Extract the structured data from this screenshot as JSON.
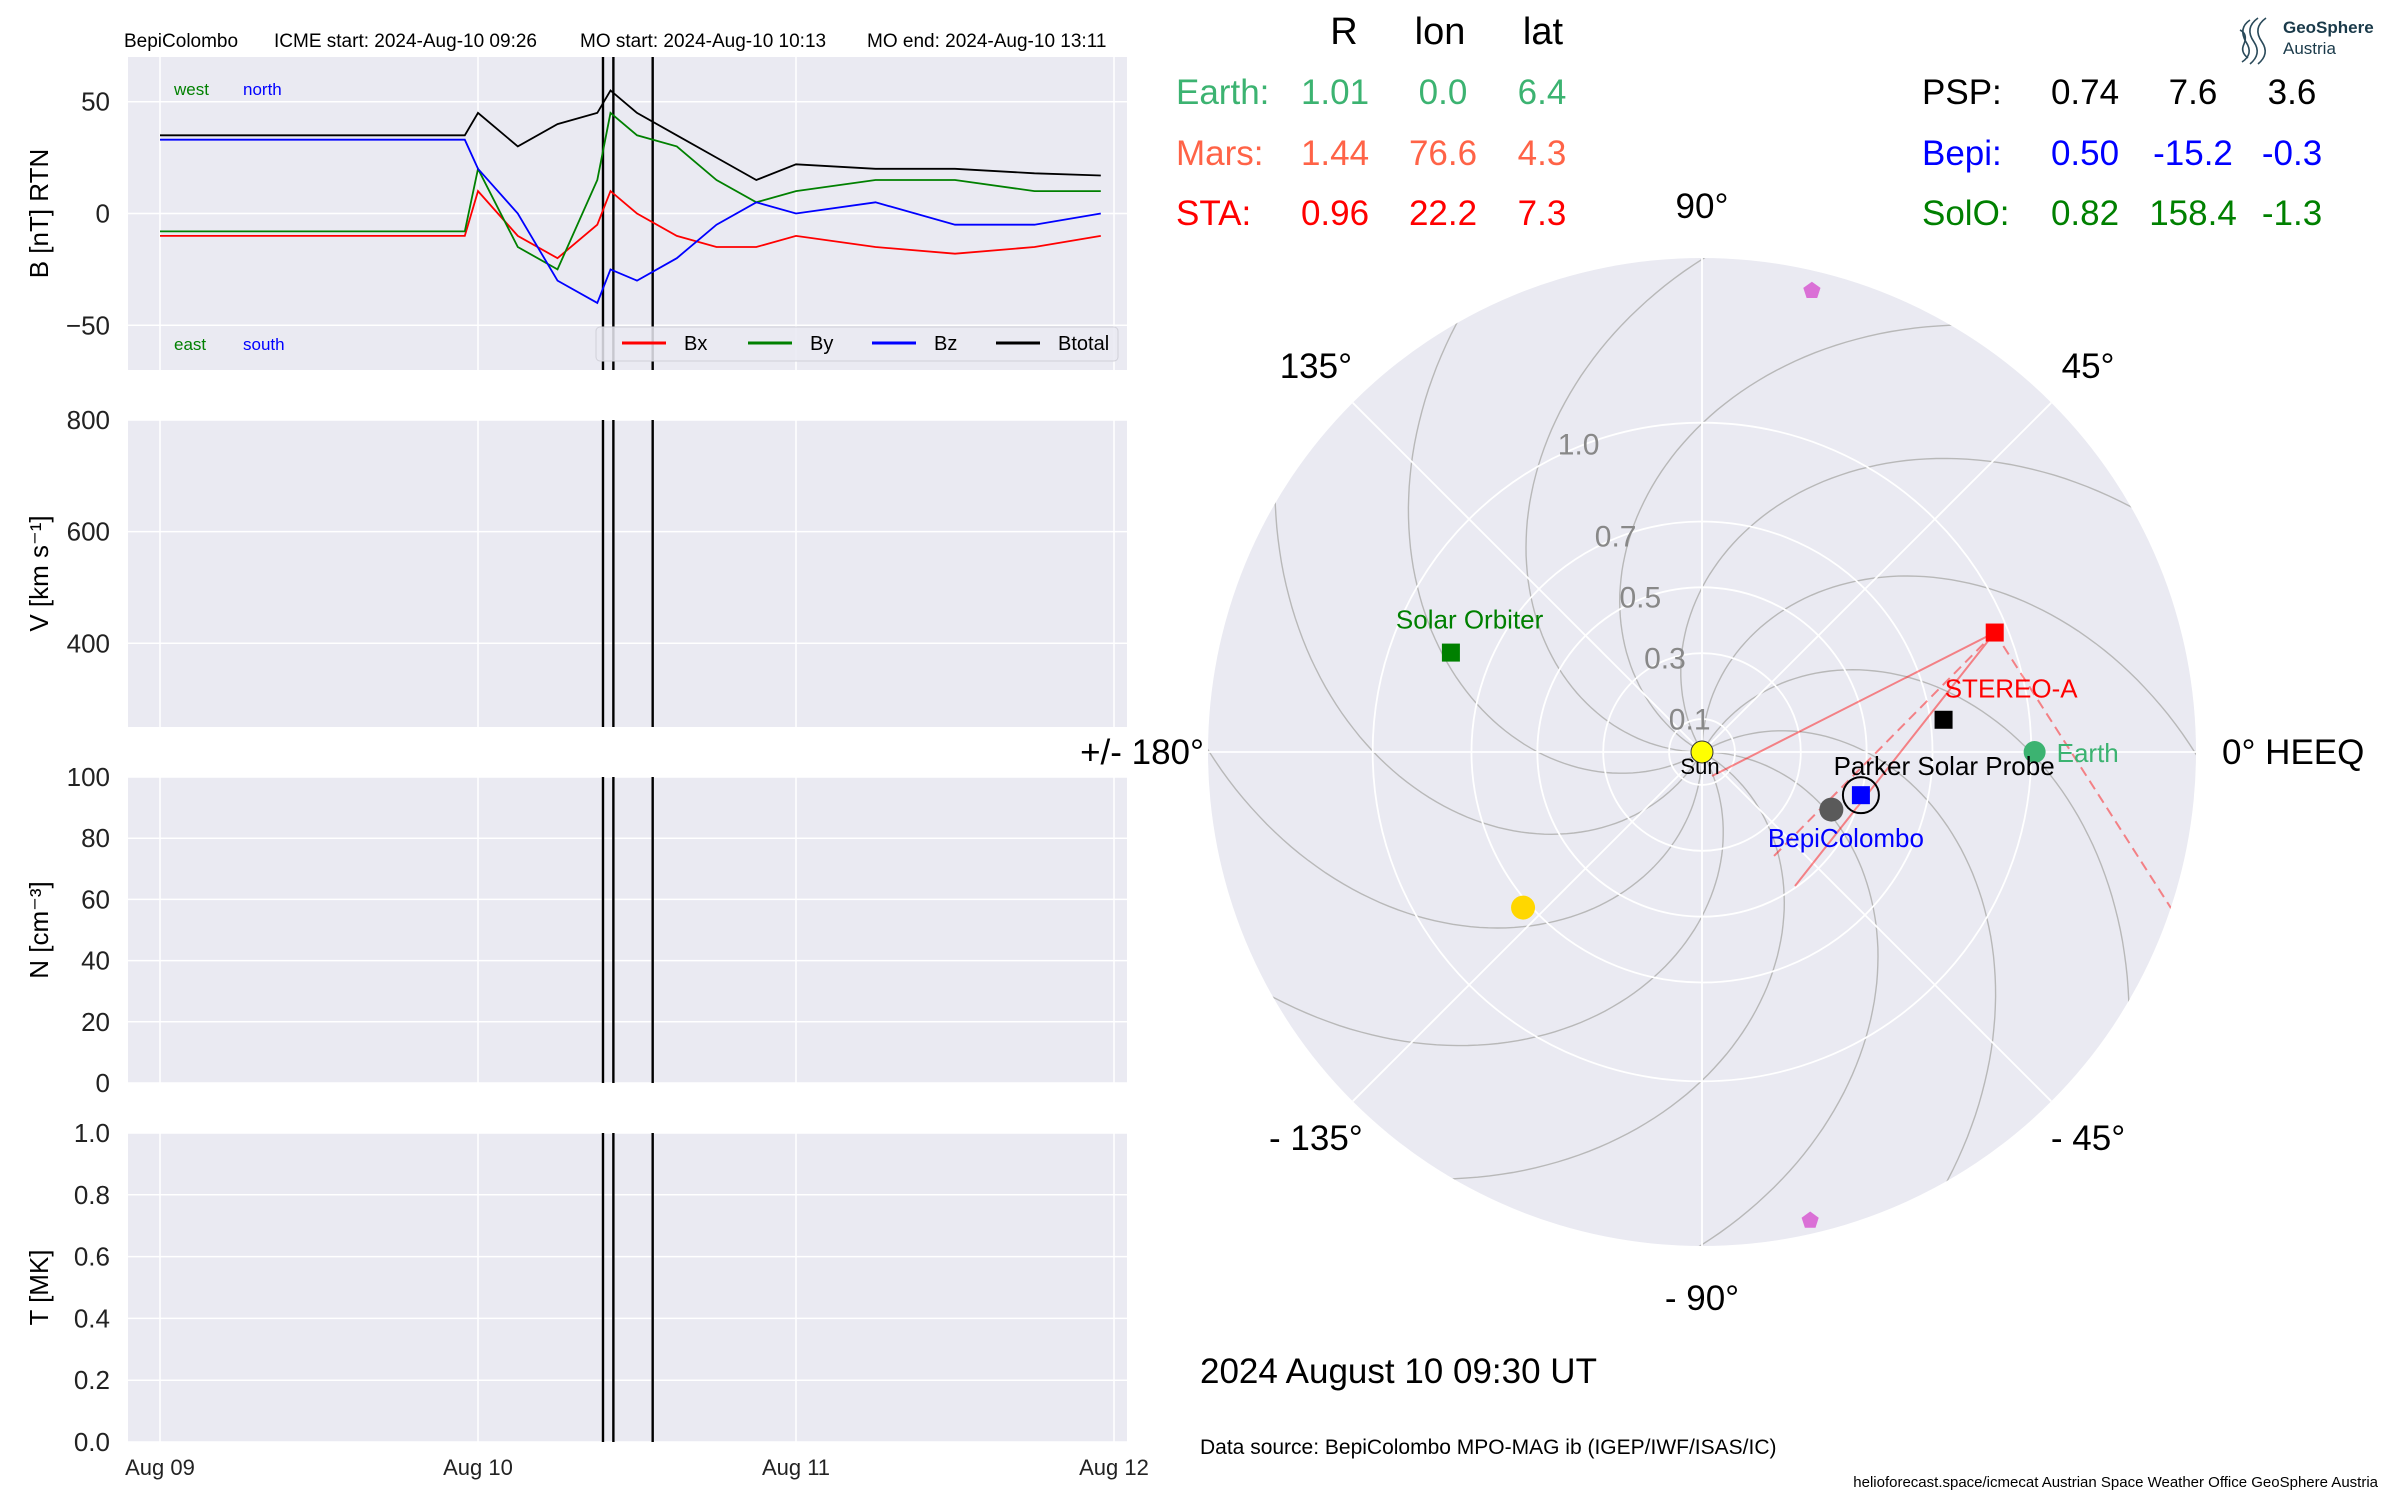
{
  "header": {
    "spacecraft": "BepiColombo",
    "icme_start": "ICME start: 2024-Aug-10 09:26",
    "mo_start": "MO start: 2024-Aug-10 10:13",
    "mo_end": "MO end: 2024-Aug-10 13:11"
  },
  "logo": {
    "line1": "GeoSphere",
    "line2": "Austria"
  },
  "colors": {
    "bx": "#ff0000",
    "by": "#008000",
    "bz": "#0000ff",
    "btotal": "#000000",
    "panel_bg": "#eaeaf2",
    "earth": "#3cb371",
    "mars": "#ff6347",
    "sta": "#ff0000",
    "psp": "#000000",
    "bepi": "#0000ff",
    "solo": "#008000"
  },
  "positions_table": {
    "headers": [
      "R",
      "lon",
      "lat"
    ],
    "left": [
      {
        "name": "Earth:",
        "values": [
          "1.01",
          "0.0",
          "6.4"
        ],
        "color": "#3cb371"
      },
      {
        "name": "Mars:",
        "values": [
          "1.44",
          "76.6",
          "4.3"
        ],
        "color": "#ff6347"
      },
      {
        "name": "STA:",
        "values": [
          "0.96",
          "22.2",
          "7.3"
        ],
        "color": "#ff0000"
      }
    ],
    "right": [
      {
        "name": "PSP:",
        "values": [
          "0.74",
          "7.6",
          "3.6"
        ],
        "color": "#000000"
      },
      {
        "name": "Bepi:",
        "values": [
          "0.50",
          "-15.2",
          "-0.3"
        ],
        "color": "#0000ff"
      },
      {
        "name": "SolO:",
        "values": [
          "0.82",
          "158.4",
          "-1.3"
        ],
        "color": "#008000"
      }
    ]
  },
  "chart_data": [
    {
      "type": "line",
      "title": "",
      "ylabel": "B [nT] RTN",
      "xlabel": "",
      "x_ticks": [
        "Aug 09",
        "Aug 10",
        "Aug 11",
        "Aug 12"
      ],
      "x_range": [
        "2024-08-09T00:00",
        "2024-08-12T00:00"
      ],
      "ylim": [
        -70,
        70
      ],
      "y_ticks": [
        "50",
        "0",
        "−50"
      ],
      "grid": true,
      "legend_position": "bottom-right",
      "orientation_labels": {
        "top_left": [
          "west",
          "north"
        ],
        "bottom_left": [
          "east",
          "south"
        ]
      },
      "event_markers": [
        "2024-08-10T09:26",
        "2024-08-10T10:13",
        "2024-08-10T13:11"
      ],
      "series": [
        {
          "name": "Bx",
          "color": "#ff0000",
          "x": [
            "2024-08-09T00:00",
            "2024-08-09T23:00",
            "2024-08-10T00:00",
            "2024-08-10T03:00",
            "2024-08-10T06:00",
            "2024-08-10T09:00",
            "2024-08-10T10:00",
            "2024-08-10T12:00",
            "2024-08-10T15:00",
            "2024-08-10T18:00",
            "2024-08-10T21:00",
            "2024-08-11T00:00",
            "2024-08-11T06:00",
            "2024-08-11T12:00",
            "2024-08-11T18:00",
            "2024-08-11T23:00"
          ],
          "values": [
            -10,
            -10,
            10,
            -10,
            -20,
            -5,
            10,
            0,
            -10,
            -15,
            -15,
            -10,
            -15,
            -18,
            -15,
            -10
          ]
        },
        {
          "name": "By",
          "color": "#008000",
          "x": [
            "2024-08-09T00:00",
            "2024-08-09T23:00",
            "2024-08-10T00:00",
            "2024-08-10T03:00",
            "2024-08-10T06:00",
            "2024-08-10T09:00",
            "2024-08-10T10:00",
            "2024-08-10T12:00",
            "2024-08-10T15:00",
            "2024-08-10T18:00",
            "2024-08-10T21:00",
            "2024-08-11T00:00",
            "2024-08-11T06:00",
            "2024-08-11T12:00",
            "2024-08-11T18:00",
            "2024-08-11T23:00"
          ],
          "values": [
            -8,
            -8,
            20,
            -15,
            -25,
            15,
            45,
            35,
            30,
            15,
            5,
            10,
            15,
            15,
            10,
            10
          ]
        },
        {
          "name": "Bz",
          "color": "#0000ff",
          "x": [
            "2024-08-09T00:00",
            "2024-08-09T23:00",
            "2024-08-10T00:00",
            "2024-08-10T03:00",
            "2024-08-10T06:00",
            "2024-08-10T09:00",
            "2024-08-10T10:00",
            "2024-08-10T12:00",
            "2024-08-10T15:00",
            "2024-08-10T18:00",
            "2024-08-10T21:00",
            "2024-08-11T00:00",
            "2024-08-11T06:00",
            "2024-08-11T12:00",
            "2024-08-11T18:00",
            "2024-08-11T23:00"
          ],
          "values": [
            33,
            33,
            20,
            0,
            -30,
            -40,
            -25,
            -30,
            -20,
            -5,
            5,
            0,
            5,
            -5,
            -5,
            0
          ]
        },
        {
          "name": "Btotal",
          "color": "#000000",
          "x": [
            "2024-08-09T00:00",
            "2024-08-09T23:00",
            "2024-08-10T00:00",
            "2024-08-10T03:00",
            "2024-08-10T06:00",
            "2024-08-10T09:00",
            "2024-08-10T10:00",
            "2024-08-10T12:00",
            "2024-08-10T15:00",
            "2024-08-10T18:00",
            "2024-08-10T21:00",
            "2024-08-11T00:00",
            "2024-08-11T06:00",
            "2024-08-11T12:00",
            "2024-08-11T18:00",
            "2024-08-11T23:00"
          ],
          "values": [
            35,
            35,
            45,
            30,
            40,
            45,
            55,
            45,
            35,
            25,
            15,
            22,
            20,
            20,
            18,
            17
          ]
        }
      ]
    },
    {
      "type": "line",
      "title": "",
      "ylabel": "V [km s⁻¹]",
      "x_ticks": [
        "Aug 09",
        "Aug 10",
        "Aug 11",
        "Aug 12"
      ],
      "ylim": [
        250,
        800
      ],
      "y_ticks": [
        "800",
        "600",
        "400"
      ],
      "grid": true,
      "event_markers": [
        "2024-08-10T09:26",
        "2024-08-10T10:13",
        "2024-08-10T13:11"
      ],
      "series": []
    },
    {
      "type": "line",
      "title": "",
      "ylabel": "N [cm⁻³]",
      "x_ticks": [
        "Aug 09",
        "Aug 10",
        "Aug 11",
        "Aug 12"
      ],
      "ylim": [
        0,
        100
      ],
      "y_ticks": [
        "100",
        "80",
        "60",
        "40",
        "20",
        "0"
      ],
      "grid": true,
      "event_markers": [
        "2024-08-10T09:26",
        "2024-08-10T10:13",
        "2024-08-10T13:11"
      ],
      "series": []
    },
    {
      "type": "line",
      "title": "",
      "ylabel": "T [MK]",
      "xlabel": "",
      "x_ticks": [
        "Aug 09",
        "Aug 10",
        "Aug 11",
        "Aug 12"
      ],
      "ylim": [
        0,
        1
      ],
      "y_ticks": [
        "1.0",
        "0.8",
        "0.6",
        "0.4",
        "0.2",
        "0.0"
      ],
      "grid": true,
      "event_markers": [
        "2024-08-10T09:26",
        "2024-08-10T10:13",
        "2024-08-10T13:11"
      ],
      "series": []
    },
    {
      "type": "scatter",
      "title": "",
      "projection": "polar",
      "r_ticks": [
        "0.1",
        "0.3",
        "0.5",
        "0.7",
        "1.0"
      ],
      "r_tick_values": [
        0.1,
        0.3,
        0.5,
        0.7,
        1.0
      ],
      "rmax": 1.5,
      "angle_labels": [
        {
          "deg": 0,
          "label": "0° HEEQ"
        },
        {
          "deg": 45,
          "label": "45°"
        },
        {
          "deg": 90,
          "label": "90°"
        },
        {
          "deg": 135,
          "label": "135°"
        },
        {
          "deg": 180,
          "label": "+/- 180°"
        },
        {
          "deg": -135,
          "label": "- 135°"
        },
        {
          "deg": -90,
          "label": "- 90°"
        },
        {
          "deg": -45,
          "label": "- 45°"
        }
      ],
      "objects": [
        {
          "name": "Sun",
          "label": "Sun",
          "r": 0.0,
          "lon": 0.0,
          "marker": "circle",
          "color": "#ffff00",
          "labeled": true
        },
        {
          "name": "Earth",
          "label": "Earth",
          "r": 1.01,
          "lon": 0.0,
          "marker": "circle",
          "color": "#3cb371",
          "labeled": true
        },
        {
          "name": "Mercury",
          "label": "",
          "r": 0.43,
          "lon": -24.0,
          "marker": "circle",
          "color": "#5a5a5a",
          "labeled": false
        },
        {
          "name": "Venus",
          "label": "",
          "r": 0.72,
          "lon": -139.0,
          "marker": "circle",
          "color": "#ffd700",
          "labeled": false
        },
        {
          "name": "Mars",
          "label": "",
          "r": 1.44,
          "lon": 76.6,
          "marker": "pentagon",
          "color": "#da70d6",
          "labeled": false
        },
        {
          "name": "Body",
          "label": "",
          "r": 1.46,
          "lon": -77.0,
          "marker": "pentagon",
          "color": "#da70d6",
          "labeled": false
        },
        {
          "name": "STEREO-A",
          "label": "STEREO-A",
          "r": 0.96,
          "lon": 22.2,
          "marker": "square",
          "color": "#ff0000",
          "labeled": true
        },
        {
          "name": "Parker Solar Probe",
          "label": "Parker Solar Probe",
          "r": 0.74,
          "lon": 7.6,
          "marker": "square",
          "color": "#000000",
          "labeled": true
        },
        {
          "name": "BepiColombo",
          "label": "BepiColombo",
          "r": 0.5,
          "lon": -15.2,
          "marker": "square",
          "color": "#0000ff",
          "labeled": true,
          "highlight": true
        },
        {
          "name": "Solar Orbiter",
          "label": "Solar Orbiter",
          "r": 0.82,
          "lon": 158.4,
          "marker": "square",
          "color": "#008000",
          "labeled": true
        }
      ]
    }
  ],
  "footer": {
    "timestamp": "2024 August 10  09:30 UT",
    "data_source": "Data source: BepiColombo MPO-MAG ib (IGEP/IWF/ISAS/IC)",
    "credits": "helioforecast.space/icmecat   Austrian Space Weather Office   GeoSphere Austria"
  }
}
